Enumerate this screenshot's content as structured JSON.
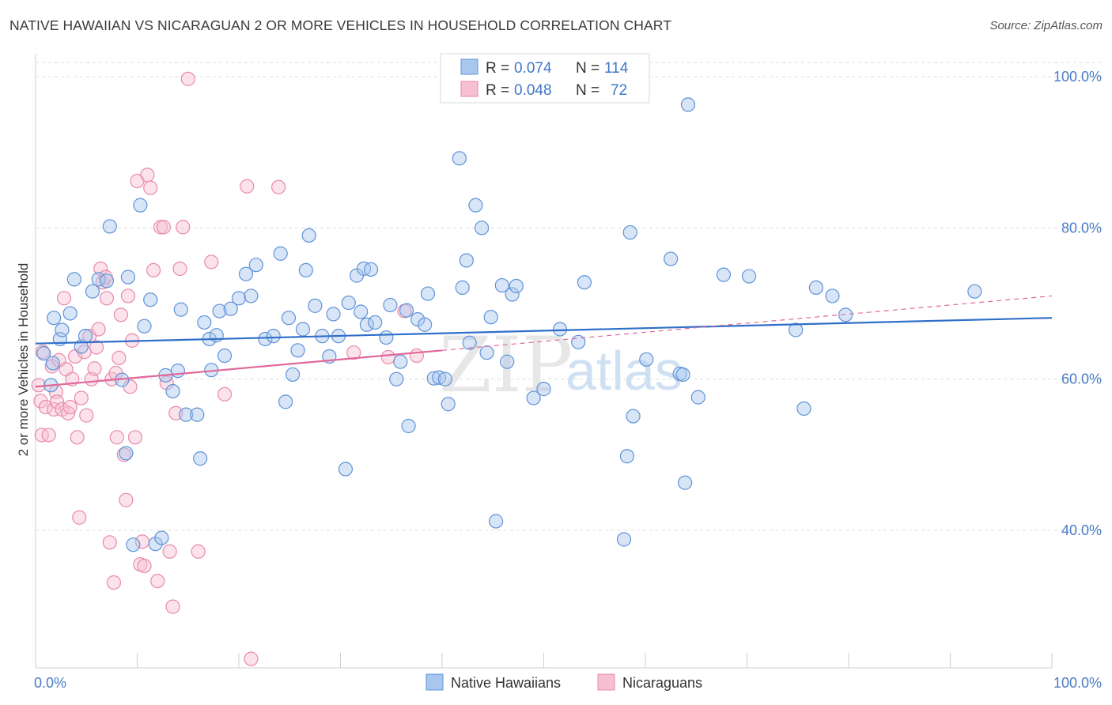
{
  "title": "NATIVE HAWAIIAN VS NICARAGUAN 2 OR MORE VEHICLES IN HOUSEHOLD CORRELATION CHART",
  "source": "Source: ZipAtlas.com",
  "watermark": {
    "zip": "ZIP",
    "atlas": "atlas"
  },
  "colors": {
    "blue_fill": "#a9c6ee",
    "blue_stroke": "#5f93d8",
    "blue_line": "#2f6fc9",
    "pink_fill": "#f6bfd2",
    "pink_stroke": "#e88aab",
    "pink_line": "#e0689a",
    "grid": "#dcdcdc",
    "tick_text": "#4a7cc7"
  },
  "legend": {
    "rows": [
      {
        "r_label": "R =",
        "r_value": "0.074",
        "n_label": "N =",
        "n_value": "114"
      },
      {
        "r_label": "R =",
        "r_value": "0.048",
        "n_label": "N =",
        "n_value": "72"
      }
    ]
  },
  "chart_data": {
    "type": "scatter",
    "title": "NATIVE HAWAIIAN VS NICARAGUAN 2 OR MORE VEHICLES IN HOUSEHOLD CORRELATION CHART",
    "xlabel": "",
    "ylabel": "2 or more Vehicles in Household",
    "xlim": [
      0,
      100
    ],
    "ylim": [
      20,
      102
    ],
    "x_tick_labels": [
      "0.0%",
      "100.0%"
    ],
    "y_tick_labels": [
      {
        "value": 40,
        "label": "40.0%"
      },
      {
        "value": 60,
        "label": "60.0%"
      },
      {
        "value": 80,
        "label": "80.0%"
      },
      {
        "value": 100,
        "label": "100.0%"
      }
    ],
    "grid": true,
    "legend_position": "bottom",
    "series": [
      {
        "name": "Native Hawaiians",
        "r": 0.074,
        "n": 114,
        "trend": {
          "x": [
            0,
            100
          ],
          "y": [
            64.7,
            68.1
          ]
        },
        "points": [
          [
            1.5,
            59.2
          ],
          [
            0.8,
            63.4
          ],
          [
            1.7,
            62.1
          ],
          [
            1.8,
            68.1
          ],
          [
            2.4,
            65.3
          ],
          [
            2.6,
            66.5
          ],
          [
            3.4,
            68.7
          ],
          [
            3.8,
            73.2
          ],
          [
            4.5,
            64.3
          ],
          [
            4.9,
            65.7
          ],
          [
            5.6,
            71.6
          ],
          [
            6.2,
            73.2
          ],
          [
            7.0,
            73.0
          ],
          [
            7.3,
            80.2
          ],
          [
            8.5,
            59.9
          ],
          [
            8.9,
            50.2
          ],
          [
            9.1,
            73.5
          ],
          [
            9.6,
            38.1
          ],
          [
            10.3,
            83.0
          ],
          [
            10.7,
            67.0
          ],
          [
            11.3,
            70.5
          ],
          [
            11.8,
            38.2
          ],
          [
            12.4,
            39.0
          ],
          [
            12.8,
            60.5
          ],
          [
            13.5,
            58.4
          ],
          [
            14.0,
            61.1
          ],
          [
            14.3,
            69.2
          ],
          [
            14.8,
            55.3
          ],
          [
            15.9,
            55.3
          ],
          [
            16.2,
            49.5
          ],
          [
            16.6,
            67.5
          ],
          [
            17.1,
            65.3
          ],
          [
            17.3,
            61.2
          ],
          [
            17.8,
            65.8
          ],
          [
            18.1,
            69.0
          ],
          [
            18.6,
            63.1
          ],
          [
            19.2,
            69.3
          ],
          [
            20.0,
            70.7
          ],
          [
            20.7,
            73.9
          ],
          [
            21.2,
            71.0
          ],
          [
            21.7,
            75.1
          ],
          [
            22.6,
            65.3
          ],
          [
            23.4,
            65.7
          ],
          [
            24.1,
            76.6
          ],
          [
            24.6,
            57.0
          ],
          [
            24.9,
            68.1
          ],
          [
            25.3,
            60.6
          ],
          [
            25.8,
            63.8
          ],
          [
            26.3,
            66.6
          ],
          [
            26.6,
            74.4
          ],
          [
            26.9,
            79.0
          ],
          [
            27.5,
            69.7
          ],
          [
            28.2,
            65.7
          ],
          [
            28.9,
            63.0
          ],
          [
            29.3,
            68.6
          ],
          [
            29.8,
            65.7
          ],
          [
            30.5,
            48.1
          ],
          [
            30.8,
            70.1
          ],
          [
            31.6,
            73.7
          ],
          [
            32.0,
            68.9
          ],
          [
            32.3,
            74.6
          ],
          [
            32.6,
            67.2
          ],
          [
            33.0,
            74.5
          ],
          [
            33.4,
            67.5
          ],
          [
            34.5,
            65.5
          ],
          [
            34.9,
            69.8
          ],
          [
            35.5,
            60.0
          ],
          [
            35.9,
            62.3
          ],
          [
            36.5,
            69.1
          ],
          [
            36.7,
            53.8
          ],
          [
            37.6,
            67.9
          ],
          [
            38.3,
            67.2
          ],
          [
            38.6,
            71.3
          ],
          [
            39.2,
            60.1
          ],
          [
            39.7,
            60.2
          ],
          [
            40.3,
            60.0
          ],
          [
            40.6,
            56.7
          ],
          [
            41.7,
            89.2
          ],
          [
            42.0,
            72.1
          ],
          [
            42.4,
            75.7
          ],
          [
            42.7,
            64.8
          ],
          [
            43.3,
            83.0
          ],
          [
            43.9,
            80.0
          ],
          [
            44.4,
            63.5
          ],
          [
            44.8,
            68.2
          ],
          [
            45.3,
            41.2
          ],
          [
            45.9,
            72.4
          ],
          [
            46.4,
            62.3
          ],
          [
            46.9,
            71.2
          ],
          [
            47.3,
            72.3
          ],
          [
            49.0,
            57.5
          ],
          [
            50.0,
            58.7
          ],
          [
            51.6,
            66.6
          ],
          [
            53.4,
            64.9
          ],
          [
            54.0,
            72.8
          ],
          [
            57.9,
            38.8
          ],
          [
            58.2,
            49.8
          ],
          [
            58.5,
            79.4
          ],
          [
            58.8,
            55.1
          ],
          [
            60.1,
            62.6
          ],
          [
            62.5,
            75.9
          ],
          [
            63.4,
            60.7
          ],
          [
            63.7,
            60.6
          ],
          [
            63.9,
            46.3
          ],
          [
            64.2,
            96.3
          ],
          [
            65.2,
            57.6
          ],
          [
            67.7,
            73.8
          ],
          [
            70.2,
            73.6
          ],
          [
            74.8,
            66.5
          ],
          [
            75.6,
            56.1
          ],
          [
            76.8,
            72.1
          ],
          [
            78.4,
            71.0
          ],
          [
            79.7,
            68.5
          ],
          [
            92.4,
            71.6
          ]
        ]
      },
      {
        "name": "Nicaraguans",
        "r": 0.048,
        "n": 72,
        "trend": {
          "x": [
            0,
            40
          ],
          "y": [
            59.0,
            63.8
          ]
        },
        "trend_extension": {
          "x": [
            40,
            100
          ],
          "y": [
            63.8,
            71.0
          ]
        },
        "points": [
          [
            0.3,
            59.2
          ],
          [
            0.5,
            57.1
          ],
          [
            0.6,
            52.6
          ],
          [
            0.7,
            63.6
          ],
          [
            1.0,
            56.3
          ],
          [
            1.3,
            52.6
          ],
          [
            1.6,
            61.7
          ],
          [
            1.8,
            56.0
          ],
          [
            2.0,
            58.3
          ],
          [
            2.1,
            57.0
          ],
          [
            2.3,
            62.5
          ],
          [
            2.6,
            56.0
          ],
          [
            2.8,
            70.7
          ],
          [
            3.0,
            61.3
          ],
          [
            3.2,
            55.5
          ],
          [
            3.4,
            56.3
          ],
          [
            3.6,
            60.0
          ],
          [
            3.9,
            63.0
          ],
          [
            4.1,
            52.3
          ],
          [
            4.3,
            41.7
          ],
          [
            4.5,
            57.5
          ],
          [
            4.8,
            63.6
          ],
          [
            5.0,
            55.2
          ],
          [
            5.3,
            65.7
          ],
          [
            5.5,
            60.0
          ],
          [
            5.8,
            61.4
          ],
          [
            6.0,
            64.2
          ],
          [
            6.2,
            66.6
          ],
          [
            6.4,
            74.6
          ],
          [
            6.6,
            72.8
          ],
          [
            6.9,
            73.5
          ],
          [
            7.0,
            70.7
          ],
          [
            7.3,
            38.4
          ],
          [
            7.5,
            60.0
          ],
          [
            7.7,
            33.1
          ],
          [
            7.9,
            60.8
          ],
          [
            8.0,
            52.3
          ],
          [
            8.2,
            62.8
          ],
          [
            8.4,
            68.5
          ],
          [
            8.7,
            50.0
          ],
          [
            8.9,
            44.0
          ],
          [
            9.1,
            71.0
          ],
          [
            9.3,
            59.0
          ],
          [
            9.5,
            65.1
          ],
          [
            9.8,
            52.3
          ],
          [
            10.0,
            86.2
          ],
          [
            10.3,
            35.5
          ],
          [
            10.5,
            38.5
          ],
          [
            10.7,
            35.3
          ],
          [
            11.0,
            87.0
          ],
          [
            11.3,
            85.3
          ],
          [
            11.6,
            74.4
          ],
          [
            12.0,
            33.3
          ],
          [
            12.3,
            80.1
          ],
          [
            12.6,
            80.1
          ],
          [
            12.9,
            59.5
          ],
          [
            13.2,
            37.2
          ],
          [
            13.5,
            29.9
          ],
          [
            13.8,
            55.5
          ],
          [
            14.2,
            74.6
          ],
          [
            14.5,
            80.1
          ],
          [
            15.0,
            99.7
          ],
          [
            16.0,
            37.2
          ],
          [
            17.3,
            75.5
          ],
          [
            18.6,
            58.0
          ],
          [
            20.8,
            85.5
          ],
          [
            21.2,
            23.0
          ],
          [
            23.9,
            85.4
          ],
          [
            31.3,
            63.5
          ],
          [
            34.7,
            62.9
          ],
          [
            36.3,
            69.0
          ],
          [
            37.5,
            63.1
          ]
        ]
      }
    ]
  }
}
